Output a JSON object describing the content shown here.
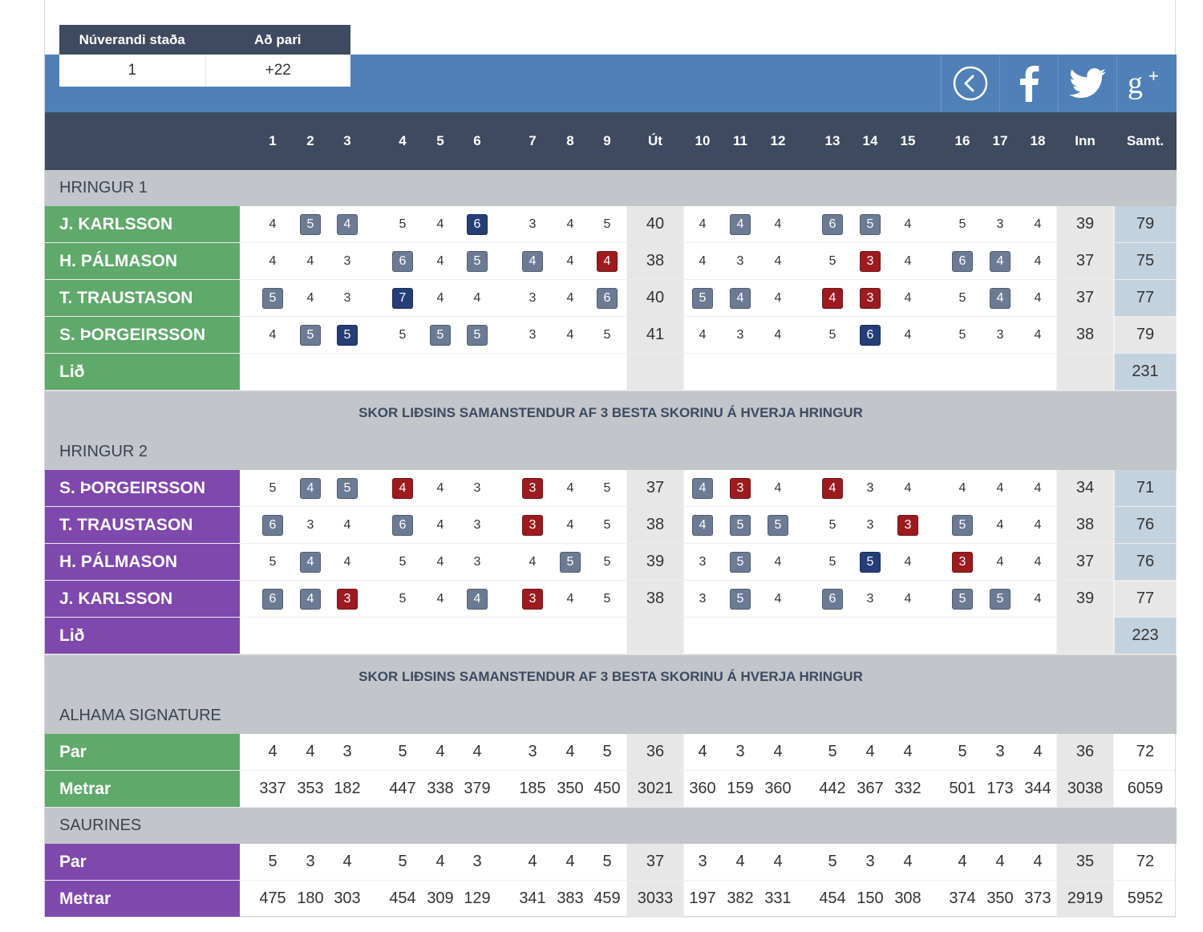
{
  "colors": {
    "header_bg": "#3d4a5f",
    "brand_blue": "#4f80b7",
    "course1_green": "#5fa96a",
    "course2_purple": "#7f48ad",
    "bogey": "#6c7b94",
    "double_bogey": "#253e77",
    "birdie": "#9b1b1e",
    "section_bg": "#c2c5ca",
    "subtotal_bg": "#e7e7e7",
    "total_highlight": "#c3d2df"
  },
  "status": {
    "position_label": "Núverandi staða",
    "par_label": "Að pari",
    "position_value": "1",
    "par_value": "+22"
  },
  "social": {
    "back_icon": "chevron-left-circle-icon",
    "facebook_icon": "facebook-icon",
    "twitter_icon": "twitter-icon",
    "gplus_icon": "google-plus-icon"
  },
  "columns": [
    "1",
    "2",
    "3",
    "4",
    "5",
    "6",
    "7",
    "8",
    "9",
    "Út",
    "10",
    "11",
    "12",
    "13",
    "14",
    "15",
    "16",
    "17",
    "18",
    "Inn",
    "Samt."
  ],
  "rounds": [
    {
      "title": "HRINGUR 1",
      "theme": "green",
      "players": [
        {
          "name": "J. KARLSSON",
          "scores": [
            "4",
            "5",
            "4",
            "5",
            "4",
            "6",
            "3",
            "4",
            "5",
            "40",
            "4",
            "4",
            "4",
            "6",
            "5",
            "4",
            "5",
            "3",
            "4",
            "39",
            "79"
          ],
          "marks": [
            "",
            "bogey",
            "bogey",
            "",
            "",
            "double",
            "",
            "",
            "",
            "",
            "",
            "bogey",
            "",
            "bogey",
            "bogey",
            "",
            "",
            "",
            ""
          ],
          "total_style": "blue"
        },
        {
          "name": "H. PÁLMASON",
          "scores": [
            "4",
            "4",
            "3",
            "6",
            "4",
            "5",
            "4",
            "4",
            "4",
            "38",
            "4",
            "3",
            "4",
            "5",
            "3",
            "4",
            "6",
            "4",
            "4",
            "37",
            "75"
          ],
          "marks": [
            "",
            "",
            "",
            "bogey",
            "",
            "bogey",
            "bogey",
            "",
            "birdie",
            "",
            "",
            "",
            "",
            "",
            "birdie",
            "",
            "bogey",
            "bogey",
            ""
          ],
          "total_style": "blue"
        },
        {
          "name": "T. TRAUSTASON",
          "scores": [
            "5",
            "4",
            "3",
            "7",
            "4",
            "4",
            "3",
            "4",
            "6",
            "40",
            "5",
            "4",
            "4",
            "4",
            "3",
            "4",
            "5",
            "4",
            "4",
            "37",
            "77"
          ],
          "marks": [
            "bogey",
            "",
            "",
            "double",
            "",
            "",
            "",
            "",
            "bogey",
            "",
            "bogey",
            "bogey",
            "",
            "birdie",
            "birdie",
            "",
            "",
            "bogey",
            ""
          ],
          "total_style": "blue"
        },
        {
          "name": "S. ÞORGEIRSSON",
          "scores": [
            "4",
            "5",
            "5",
            "5",
            "5",
            "5",
            "3",
            "4",
            "5",
            "41",
            "4",
            "3",
            "4",
            "5",
            "6",
            "4",
            "5",
            "3",
            "4",
            "38",
            "79"
          ],
          "marks": [
            "",
            "bogey",
            "double",
            "",
            "bogey",
            "bogey",
            "",
            "",
            "",
            "",
            "",
            "",
            "",
            "",
            "double",
            "",
            "",
            "",
            ""
          ],
          "total_style": "grey"
        }
      ],
      "team_label": "Lið",
      "team_total": "231",
      "note": "SKOR LIÐSINS SAMANSTENDUR AF 3 BESTA SKORINU Á HVERJA HRINGUR"
    },
    {
      "title": "HRINGUR 2",
      "theme": "purple",
      "players": [
        {
          "name": "S. ÞORGEIRSSON",
          "scores": [
            "5",
            "4",
            "5",
            "4",
            "4",
            "3",
            "3",
            "4",
            "5",
            "37",
            "4",
            "3",
            "4",
            "4",
            "3",
            "4",
            "4",
            "4",
            "4",
            "34",
            "71"
          ],
          "marks": [
            "",
            "bogey",
            "bogey",
            "birdie",
            "",
            "",
            "birdie",
            "",
            "",
            "",
            "bogey",
            "birdie",
            "",
            "birdie",
            "",
            "",
            "",
            "",
            ""
          ],
          "total_style": "blue"
        },
        {
          "name": "T. TRAUSTASON",
          "scores": [
            "6",
            "3",
            "4",
            "6",
            "4",
            "3",
            "3",
            "4",
            "5",
            "38",
            "4",
            "5",
            "5",
            "5",
            "3",
            "3",
            "5",
            "4",
            "4",
            "38",
            "76"
          ],
          "marks": [
            "bogey",
            "",
            "",
            "bogey",
            "",
            "",
            "birdie",
            "",
            "",
            "",
            "bogey",
            "bogey",
            "bogey",
            "",
            "",
            "birdie",
            "bogey",
            "",
            ""
          ],
          "total_style": "blue"
        },
        {
          "name": "H. PÁLMASON",
          "scores": [
            "5",
            "4",
            "4",
            "5",
            "4",
            "3",
            "4",
            "5",
            "5",
            "39",
            "3",
            "5",
            "4",
            "5",
            "5",
            "4",
            "3",
            "4",
            "4",
            "37",
            "76"
          ],
          "marks": [
            "",
            "bogey",
            "",
            "",
            "",
            "",
            "",
            "bogey",
            "",
            "",
            "",
            "bogey",
            "",
            "",
            "double",
            "",
            "birdie",
            "",
            ""
          ],
          "total_style": "blue"
        },
        {
          "name": "J. KARLSSON",
          "scores": [
            "6",
            "4",
            "3",
            "5",
            "4",
            "4",
            "3",
            "4",
            "5",
            "38",
            "3",
            "5",
            "4",
            "6",
            "3",
            "4",
            "5",
            "5",
            "4",
            "39",
            "77"
          ],
          "marks": [
            "bogey",
            "bogey",
            "birdie",
            "",
            "",
            "bogey",
            "birdie",
            "",
            "",
            "",
            "",
            "bogey",
            "",
            "bogey",
            "",
            "",
            "bogey",
            "bogey",
            ""
          ],
          "total_style": "grey"
        }
      ],
      "team_label": "Lið",
      "team_total": "223",
      "note": "SKOR LIÐSINS SAMANSTENDUR AF 3 BESTA SKORINU Á HVERJA HRINGUR"
    }
  ],
  "courses": [
    {
      "title": "ALHAMA SIGNATURE",
      "theme": "green",
      "rows": [
        {
          "label": "Par",
          "values": [
            "4",
            "4",
            "3",
            "5",
            "4",
            "4",
            "3",
            "4",
            "5",
            "36",
            "4",
            "3",
            "4",
            "5",
            "4",
            "4",
            "5",
            "3",
            "4",
            "36",
            "72"
          ]
        },
        {
          "label": "Metrar",
          "values": [
            "337",
            "353",
            "182",
            "447",
            "338",
            "379",
            "185",
            "350",
            "450",
            "3021",
            "360",
            "159",
            "360",
            "442",
            "367",
            "332",
            "501",
            "173",
            "344",
            "3038",
            "6059"
          ]
        }
      ]
    },
    {
      "title": "SAURINES",
      "theme": "purple",
      "rows": [
        {
          "label": "Par",
          "values": [
            "5",
            "3",
            "4",
            "5",
            "4",
            "3",
            "4",
            "4",
            "5",
            "37",
            "3",
            "4",
            "4",
            "5",
            "3",
            "4",
            "4",
            "4",
            "4",
            "35",
            "72"
          ]
        },
        {
          "label": "Metrar",
          "values": [
            "475",
            "180",
            "303",
            "454",
            "309",
            "129",
            "341",
            "383",
            "459",
            "3033",
            "197",
            "382",
            "331",
            "454",
            "150",
            "308",
            "374",
            "350",
            "373",
            "2919",
            "5952"
          ]
        }
      ]
    }
  ]
}
